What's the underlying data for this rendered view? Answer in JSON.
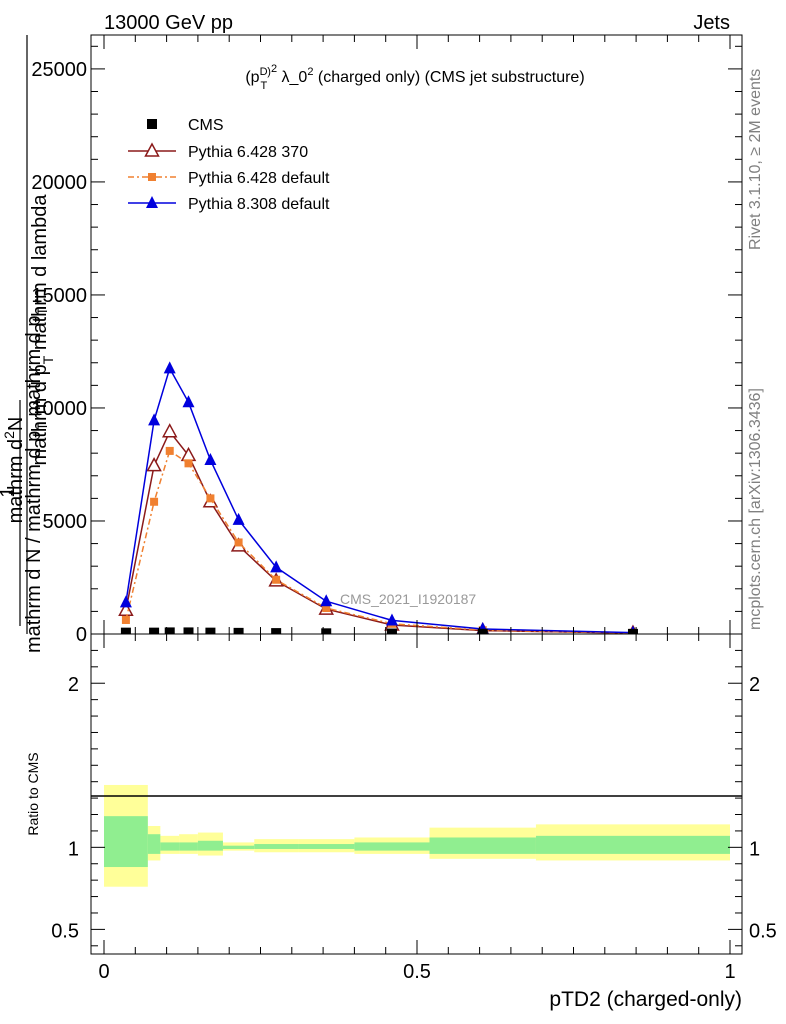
{
  "header": {
    "left": "13000 GeV pp",
    "right": "Jets"
  },
  "side_labels": {
    "rivet": "Rivet 3.1.10, ≥ 2M events",
    "mcplots": "mcplots.cern.ch [arXiv:1306.3436]"
  },
  "watermark": "CMS_2021_I1920187",
  "chart_data": [
    {
      "type": "line",
      "title": "(p_T^D)^2 λ_0^2 (charged only) (CMS jet substructure)",
      "ylabel_top_numerator": "1",
      "ylabel_top_denominator": "mathrm d N / mathrm d p_T mathrm d p_T",
      "ylabel_outer_numerator": "mathrm d^2N",
      "ylabel_outer_denominator": "mathrm d p_T mathrm d lambda",
      "ylim": [
        0,
        26500
      ],
      "yticks": [
        0,
        5000,
        10000,
        15000,
        20000,
        25000
      ],
      "ytick_labels": [
        "0",
        "5000",
        "10000",
        "15000",
        "20000",
        "25000"
      ],
      "xlim": [
        -0.02,
        1.02
      ],
      "x": [
        0.035,
        0.08,
        0.105,
        0.135,
        0.17,
        0.215,
        0.275,
        0.355,
        0.46,
        0.605,
        0.845
      ],
      "series": [
        {
          "name": "CMS",
          "color": "#000000",
          "marker": "square",
          "values": [
            60,
            60,
            70,
            70,
            60,
            50,
            40,
            30,
            20,
            10,
            5
          ]
        },
        {
          "name": "Pythia 6.428 370",
          "color": "#8b1a1a",
          "marker": "open-triangle",
          "values": [
            1050,
            7450,
            8950,
            7900,
            5850,
            3900,
            2350,
            1100,
            400,
            150,
            40
          ]
        },
        {
          "name": "Pythia 6.428 default",
          "color": "#f08030",
          "marker": "small-square",
          "values": [
            620,
            5850,
            8100,
            7550,
            6000,
            4050,
            2400,
            1150,
            450,
            170,
            50
          ]
        },
        {
          "name": "Pythia 8.308 default",
          "color": "#0000dd",
          "marker": "filled-triangle",
          "values": [
            1400,
            9450,
            11750,
            10250,
            7700,
            5050,
            2950,
            1450,
            600,
            220,
            60
          ]
        }
      ]
    },
    {
      "type": "area",
      "ylabel": "Ratio to CMS",
      "xlabel": "pTD2 (charged-only)",
      "ylim": [
        0.35,
        2.3
      ],
      "yticks": [
        0.5,
        1,
        2
      ],
      "ytick_labels": [
        "0.5",
        "1",
        "2"
      ],
      "xticks": [
        0,
        0.5,
        1
      ],
      "xtick_labels": [
        "0",
        "0.5",
        "1"
      ],
      "bands": [
        {
          "xlo": 0.0,
          "xhi": 0.07,
          "yellow": [
            0.76,
            1.38
          ],
          "green": [
            0.88,
            1.19
          ]
        },
        {
          "xlo": 0.07,
          "xhi": 0.09,
          "yellow": [
            0.92,
            1.13
          ],
          "green": [
            0.96,
            1.08
          ]
        },
        {
          "xlo": 0.09,
          "xhi": 0.12,
          "yellow": [
            0.96,
            1.07
          ],
          "green": [
            0.98,
            1.03
          ]
        },
        {
          "xlo": 0.12,
          "xhi": 0.15,
          "yellow": [
            0.96,
            1.08
          ],
          "green": [
            0.98,
            1.03
          ]
        },
        {
          "xlo": 0.15,
          "xhi": 0.19,
          "yellow": [
            0.95,
            1.09
          ],
          "green": [
            0.98,
            1.04
          ]
        },
        {
          "xlo": 0.19,
          "xhi": 0.24,
          "yellow": [
            0.98,
            1.03
          ],
          "green": [
            0.99,
            1.01
          ]
        },
        {
          "xlo": 0.24,
          "xhi": 0.31,
          "yellow": [
            0.97,
            1.05
          ],
          "green": [
            0.99,
            1.02
          ]
        },
        {
          "xlo": 0.31,
          "xhi": 0.4,
          "yellow": [
            0.97,
            1.05
          ],
          "green": [
            0.99,
            1.02
          ]
        },
        {
          "xlo": 0.4,
          "xhi": 0.52,
          "yellow": [
            0.96,
            1.06
          ],
          "green": [
            0.98,
            1.03
          ]
        },
        {
          "xlo": 0.52,
          "xhi": 0.69,
          "yellow": [
            0.93,
            1.12
          ],
          "green": [
            0.96,
            1.06
          ]
        },
        {
          "xlo": 0.69,
          "xhi": 1.0,
          "yellow": [
            0.92,
            1.14
          ],
          "green": [
            0.96,
            1.07
          ]
        }
      ]
    }
  ]
}
